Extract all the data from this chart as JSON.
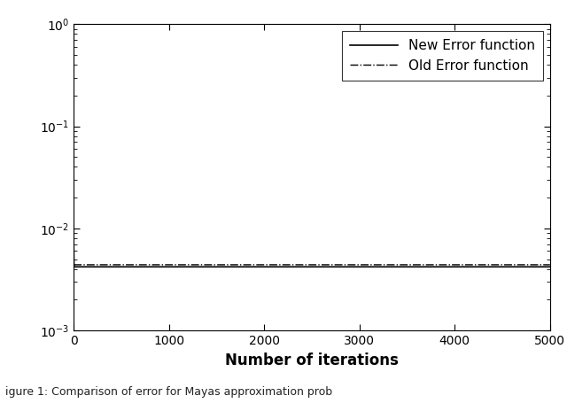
{
  "title": "",
  "xlabel": "Number of iterations",
  "ylabel": "",
  "xlim": [
    0,
    5000
  ],
  "ylim_log_min": -3,
  "ylim_log_max": 0,
  "new_error_start": 0.007,
  "new_error_steady": 0.0042,
  "old_error_steady": 0.0044,
  "new_error_label": "New Error function",
  "old_error_label": "Old Error function",
  "line_color": "#000000",
  "iterations": 5000,
  "legend_loc": "upper right",
  "font_size": 11,
  "xlabel_fontsize": 12,
  "tick_fontsize": 10,
  "caption": "igure 1: Comparison of error for Mayas approximation prob",
  "caption_fontsize": 9,
  "bg_color": "#f0f0f0"
}
